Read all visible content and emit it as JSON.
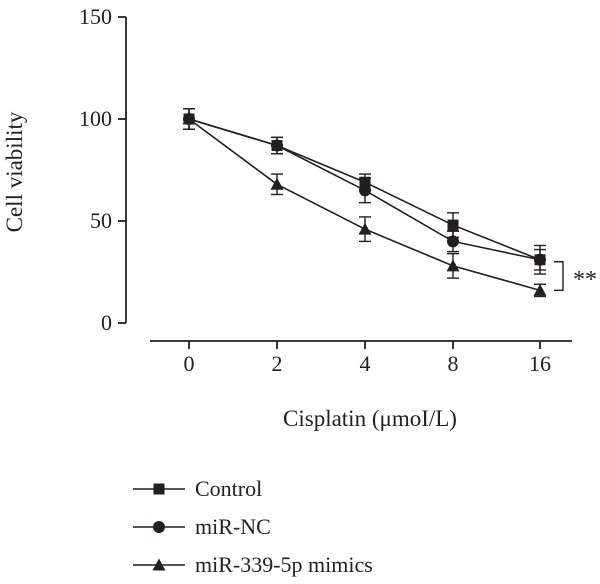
{
  "chart_data": {
    "type": "line",
    "xlabel": "Cisplatin (μmoI/L)",
    "ylabel": "Cell viability",
    "categories": [
      "0",
      "2",
      "4",
      "8",
      "16"
    ],
    "ylim": [
      0,
      150
    ],
    "yticks": [
      0,
      50,
      100,
      150
    ],
    "grid": false,
    "legend_position": "bottom",
    "series": [
      {
        "name": "Control",
        "marker": "square",
        "values": [
          100,
          87,
          69,
          48,
          31
        ],
        "errors": [
          5,
          4,
          4,
          6,
          7
        ]
      },
      {
        "name": "miR-NC",
        "marker": "circle",
        "values": [
          100,
          87,
          65,
          40,
          31
        ],
        "errors": [
          5,
          4,
          6,
          5,
          5
        ]
      },
      {
        "name": "miR-339-5p mimics",
        "marker": "triangle",
        "values": [
          100,
          68,
          46,
          28,
          16
        ],
        "errors": [
          5,
          5,
          6,
          6,
          3
        ]
      }
    ],
    "annotations": [
      {
        "text": "**"
      }
    ],
    "colors": {
      "ink": "#231f20"
    }
  }
}
